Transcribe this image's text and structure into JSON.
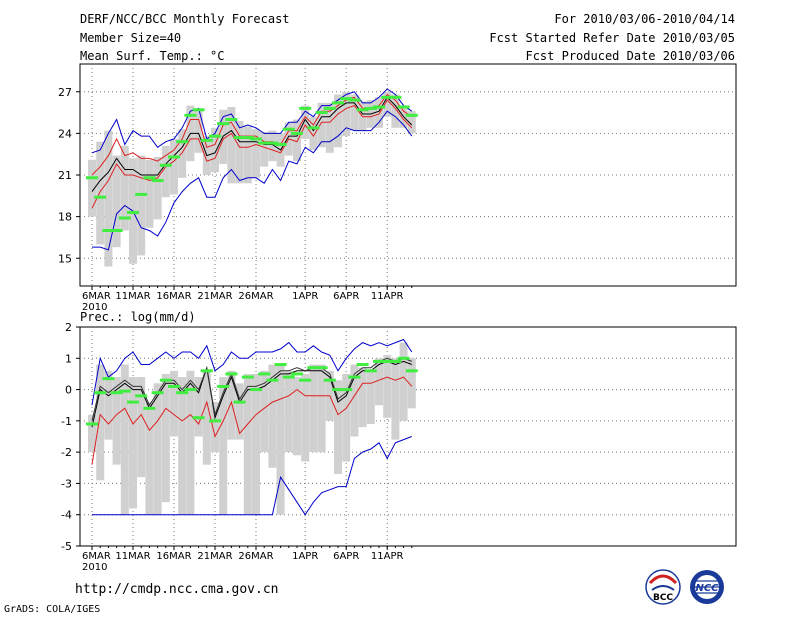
{
  "header": {
    "title": "DERF/NCC/BCC Monthly Forecast",
    "member_size": "Member Size=40",
    "variable": "Mean Surf. Temp.: °C",
    "period": "For 2010/03/06-2010/04/14",
    "started": "Fcst Started Refer Date 2010/03/05",
    "produced": "Fcst Produced Date 2010/03/06"
  },
  "footer": {
    "url": "http://cmdp.ncc.cma.gov.cn",
    "grads": "GrADS: COLA/IGES",
    "logo_bcc": "BCC",
    "logo_ncc": "NCC"
  },
  "colors": {
    "bar": "#d0d0d0",
    "median": "#40ee40",
    "max": "#0000cc",
    "upper": "#dd2020",
    "mean": "#000000",
    "grid": "#777777"
  },
  "chart_data": [
    {
      "type": "line",
      "title": "Mean Surf. Temp.: °C",
      "xlabel": "",
      "ylabel": "",
      "ylim": [
        13,
        29
      ],
      "yticks": [
        15,
        18,
        21,
        24,
        27
      ],
      "x_tick_labels": [
        "6MAR\n2010",
        "11MAR",
        "16MAR",
        "21MAR",
        "26MAR",
        "1APR",
        "6APR",
        "11APR"
      ],
      "x_tick_days": [
        0,
        5,
        10,
        15,
        20,
        26,
        31,
        36
      ],
      "days": [
        0,
        1,
        2,
        3,
        4,
        5,
        6,
        7,
        8,
        9,
        10,
        11,
        12,
        13,
        14,
        15,
        16,
        17,
        18,
        19,
        20,
        21,
        22,
        23,
        24,
        25,
        26,
        27,
        28,
        29,
        30,
        31,
        32,
        33,
        34,
        35,
        36,
        37,
        38,
        39
      ],
      "box_top": [
        22.1,
        23.4,
        24.2,
        22.4,
        23.1,
        22.2,
        22.4,
        22.1,
        22.3,
        23.1,
        23.6,
        24.3,
        26.0,
        25.8,
        23.8,
        24.4,
        25.7,
        25.9,
        24.9,
        24.5,
        24.3,
        24.1,
        24.2,
        24.0,
        24.8,
        25.0,
        26.0,
        25.2,
        26.2,
        26.2,
        26.8,
        27.0,
        26.8,
        26.3,
        26.4,
        26.6,
        27.0,
        26.8,
        25.9,
        25.6
      ],
      "box_bottom": [
        18.0,
        16.0,
        14.4,
        15.8,
        17.0,
        14.6,
        15.2,
        17.2,
        17.8,
        19.4,
        19.6,
        20.8,
        22.0,
        22.6,
        21.0,
        21.2,
        21.8,
        20.4,
        20.4,
        20.4,
        20.8,
        21.6,
        22.0,
        21.6,
        22.4,
        22.0,
        23.6,
        22.8,
        23.0,
        22.6,
        23.0,
        23.8,
        24.2,
        24.2,
        24.4,
        24.4,
        25.2,
        24.4,
        24.4,
        24.0
      ],
      "series": [
        {
          "name": "max",
          "color": "#0000cc",
          "values": [
            22.6,
            22.8,
            24.0,
            25.0,
            23.2,
            24.2,
            23.8,
            23.8,
            23.0,
            23.4,
            23.6,
            24.4,
            25.6,
            25.8,
            23.6,
            24.0,
            25.2,
            25.4,
            24.4,
            24.6,
            24.4,
            24.0,
            24.0,
            24.0,
            24.8,
            24.8,
            25.6,
            25.2,
            26.0,
            26.0,
            26.4,
            26.8,
            27.0,
            26.2,
            26.2,
            26.6,
            27.2,
            26.8,
            26.0,
            25.6
          ]
        },
        {
          "name": "upper",
          "color": "#dd2020",
          "values": [
            21.0,
            21.6,
            22.4,
            23.6,
            22.4,
            22.6,
            22.2,
            22.2,
            22.0,
            22.4,
            22.8,
            23.6,
            25.0,
            25.0,
            23.0,
            23.2,
            24.6,
            24.8,
            23.8,
            23.8,
            23.8,
            23.4,
            23.4,
            23.2,
            24.2,
            24.2,
            25.2,
            24.6,
            25.6,
            25.6,
            26.0,
            26.4,
            26.6,
            25.8,
            25.8,
            26.0,
            26.8,
            26.4,
            25.6,
            25.2
          ]
        },
        {
          "name": "mean",
          "color": "#000000",
          "values": [
            19.8,
            20.6,
            21.2,
            22.2,
            21.4,
            21.4,
            21.0,
            21.0,
            21.0,
            21.8,
            22.4,
            23.0,
            24.0,
            24.0,
            22.4,
            22.6,
            23.8,
            24.2,
            23.4,
            23.4,
            23.4,
            23.2,
            23.2,
            22.8,
            23.8,
            23.8,
            25.0,
            24.2,
            25.2,
            25.2,
            25.8,
            26.2,
            26.2,
            25.4,
            25.4,
            25.6,
            26.6,
            26.0,
            25.2,
            24.6
          ]
        },
        {
          "name": "lower",
          "color": "#dd2020",
          "values": [
            18.6,
            19.8,
            20.6,
            21.8,
            21.0,
            21.0,
            20.8,
            20.6,
            20.8,
            21.6,
            22.0,
            22.6,
            23.6,
            23.6,
            22.0,
            22.2,
            23.6,
            24.0,
            23.0,
            23.0,
            23.2,
            23.0,
            22.8,
            22.6,
            23.6,
            23.4,
            24.6,
            23.8,
            24.8,
            24.8,
            25.4,
            25.8,
            26.0,
            25.2,
            25.2,
            25.4,
            26.4,
            25.8,
            25.0,
            24.4
          ]
        },
        {
          "name": "min",
          "color": "#0000cc",
          "values": [
            15.8,
            15.8,
            15.6,
            18.2,
            18.8,
            18.4,
            17.2,
            17.0,
            16.6,
            17.6,
            19.0,
            19.8,
            20.4,
            20.8,
            19.4,
            19.4,
            20.8,
            21.4,
            20.6,
            20.8,
            20.8,
            20.4,
            21.4,
            20.6,
            22.0,
            21.8,
            23.0,
            22.6,
            23.4,
            23.4,
            23.8,
            24.4,
            24.2,
            24.2,
            24.2,
            24.8,
            25.6,
            25.2,
            24.6,
            23.8
          ]
        },
        {
          "name": "median",
          "color": "#40ee40",
          "values": [
            20.8,
            19.4,
            17.0,
            17.0,
            17.9,
            18.3,
            19.6,
            20.8,
            20.6,
            21.7,
            22.3,
            23.4,
            25.3,
            25.7,
            23.5,
            23.8,
            24.7,
            25.0,
            23.7,
            23.7,
            23.6,
            23.3,
            23.3,
            23.2,
            24.3,
            24.0,
            25.8,
            24.4,
            25.5,
            25.8,
            26.2,
            26.5,
            26.4,
            25.7,
            25.8,
            25.9,
            26.6,
            26.6,
            25.9,
            25.3
          ]
        }
      ]
    },
    {
      "type": "line",
      "title": "Prec.: log(mm/d)",
      "xlabel": "",
      "ylabel": "",
      "ylim": [
        -5,
        2
      ],
      "yticks": [
        -5,
        -4,
        -3,
        -2,
        -1,
        0,
        1,
        2
      ],
      "x_tick_labels": [
        "6MAR\n2010",
        "11MAR",
        "16MAR",
        "21MAR",
        "26MAR",
        "1APR",
        "6APR",
        "11APR"
      ],
      "x_tick_days": [
        0,
        5,
        10,
        15,
        20,
        26,
        31,
        36
      ],
      "days": [
        0,
        1,
        2,
        3,
        4,
        5,
        6,
        7,
        8,
        9,
        10,
        11,
        12,
        13,
        14,
        15,
        16,
        17,
        18,
        19,
        20,
        21,
        22,
        23,
        24,
        25,
        26,
        27,
        28,
        29,
        30,
        31,
        32,
        33,
        34,
        35,
        36,
        37,
        38,
        39
      ],
      "box_top": [
        -0.8,
        0.8,
        0.6,
        0.4,
        0.8,
        0.4,
        0.4,
        -0.4,
        0.2,
        0.5,
        0.6,
        0.4,
        0.6,
        0.4,
        0.6,
        -0.4,
        0.4,
        0.6,
        0.2,
        0.5,
        0.5,
        0.6,
        0.8,
        0.8,
        0.6,
        0.4,
        0.5,
        0.8,
        0.8,
        0.6,
        0.3,
        0.5,
        0.8,
        0.7,
        0.6,
        1.0,
        1.1,
        1.0,
        1.5,
        1.0
      ],
      "box_bottom": [
        -2.0,
        -2.9,
        -1.6,
        -2.4,
        -4.0,
        -3.8,
        -2.8,
        -4.0,
        -4.0,
        -3.6,
        -1.5,
        -4.0,
        -4.0,
        -1.5,
        -2.4,
        -2.0,
        -4.0,
        -1.6,
        -1.6,
        -4.0,
        -4.0,
        -2.0,
        -2.5,
        -4.0,
        -2.0,
        -2.1,
        -2.3,
        -2.0,
        -2.0,
        -1.0,
        -2.7,
        -2.3,
        -1.5,
        -1.2,
        -1.1,
        -0.5,
        -0.9,
        -1.6,
        -1.0,
        -0.6
      ],
      "series": [
        {
          "name": "max",
          "color": "#0000cc",
          "values": [
            -0.5,
            1.0,
            0.4,
            0.6,
            1.0,
            1.2,
            0.8,
            0.8,
            1.0,
            1.2,
            1.0,
            1.2,
            1.2,
            1.0,
            1.4,
            0.6,
            0.8,
            1.2,
            1.0,
            1.0,
            1.2,
            1.2,
            1.2,
            1.3,
            1.5,
            1.2,
            1.2,
            1.4,
            1.2,
            1.1,
            0.6,
            1.0,
            1.3,
            1.5,
            1.4,
            1.5,
            1.4,
            1.5,
            1.6,
            1.2
          ]
        },
        {
          "name": "mean",
          "color": "#000000",
          "values": [
            -1.2,
            0.0,
            -0.2,
            0.0,
            0.2,
            0.0,
            0.0,
            -0.6,
            -0.2,
            0.2,
            0.2,
            -0.1,
            0.2,
            -0.1,
            0.7,
            -0.9,
            -0.2,
            0.4,
            -0.4,
            0.0,
            0.0,
            0.1,
            0.3,
            0.5,
            0.5,
            0.6,
            0.6,
            0.6,
            0.6,
            0.4,
            -0.4,
            -0.2,
            0.4,
            0.6,
            0.6,
            0.8,
            0.9,
            0.8,
            0.9,
            0.8
          ]
        },
        {
          "name": "upper",
          "color": "#333333",
          "values": [
            -1.0,
            0.1,
            -0.1,
            0.1,
            0.3,
            0.1,
            0.1,
            -0.5,
            -0.1,
            0.3,
            0.3,
            0.0,
            0.3,
            0.0,
            0.7,
            -0.8,
            -0.1,
            0.5,
            -0.3,
            0.1,
            0.1,
            0.2,
            0.4,
            0.6,
            0.6,
            0.7,
            0.6,
            0.7,
            0.7,
            0.5,
            -0.3,
            -0.1,
            0.5,
            0.7,
            0.7,
            0.9,
            1.0,
            0.9,
            1.0,
            0.9
          ]
        },
        {
          "name": "lower",
          "color": "#dd2020",
          "values": [
            -2.4,
            -0.8,
            -1.1,
            -0.8,
            -0.6,
            -1.1,
            -0.8,
            -1.3,
            -1.0,
            -0.6,
            -0.8,
            -1.0,
            -0.8,
            -1.1,
            -0.4,
            -1.5,
            -1.0,
            -0.4,
            -1.4,
            -1.1,
            -0.8,
            -0.6,
            -0.4,
            -0.3,
            -0.2,
            0.0,
            -0.2,
            -0.2,
            -0.2,
            -0.2,
            -0.8,
            -0.6,
            -0.2,
            0.2,
            0.2,
            0.3,
            0.4,
            0.3,
            0.4,
            0.1
          ]
        },
        {
          "name": "min",
          "color": "#0000cc",
          "values": [
            -4.0,
            -4.0,
            -4.0,
            -4.0,
            -4.0,
            -4.0,
            -4.0,
            -4.0,
            -4.0,
            -4.0,
            -4.0,
            -4.0,
            -4.0,
            -4.0,
            -4.0,
            -4.0,
            -4.0,
            -4.0,
            -4.0,
            -4.0,
            -4.0,
            -4.0,
            -4.0,
            -2.8,
            -3.2,
            -3.6,
            -4.0,
            -3.6,
            -3.3,
            -3.2,
            -3.1,
            -3.1,
            -2.2,
            -2.0,
            -1.9,
            -1.7,
            -2.2,
            -1.7,
            -1.6,
            -1.5
          ]
        },
        {
          "name": "median",
          "color": "#40ee40",
          "values": [
            -1.1,
            -0.1,
            0.35,
            -0.1,
            -0.05,
            -0.4,
            -0.2,
            -0.6,
            -0.1,
            0.3,
            0.1,
            -0.1,
            0.0,
            -0.9,
            0.6,
            -1.0,
            0.1,
            0.5,
            -0.4,
            0.4,
            0.0,
            0.5,
            0.3,
            0.8,
            0.4,
            0.5,
            0.3,
            0.7,
            0.7,
            0.3,
            0.0,
            0.0,
            0.4,
            0.8,
            0.6,
            0.9,
            0.9,
            0.9,
            1.0,
            0.6
          ]
        }
      ]
    }
  ]
}
